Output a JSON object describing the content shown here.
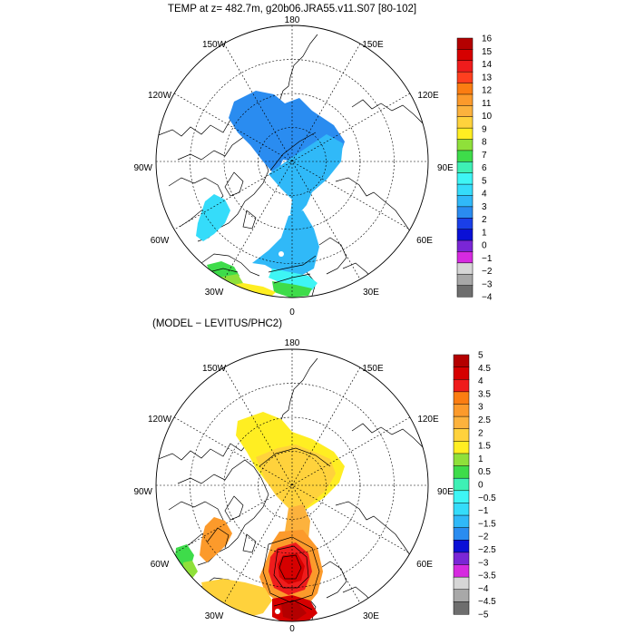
{
  "top": {
    "title": "TEMP at z= 482.7m, g20b06.JRA55.v11.S07 [80-102]",
    "lon_labels": [
      "180",
      "150W",
      "150E",
      "120W",
      "120E",
      "90W",
      "90E",
      "60W",
      "60E",
      "30W",
      "30E",
      "0"
    ],
    "colorbar": {
      "labels": [
        "16",
        "15",
        "14",
        "13",
        "12",
        "11",
        "10",
        "9",
        "8",
        "7",
        "6",
        "5",
        "4",
        "3",
        "2",
        "1",
        "0",
        "−1",
        "−2",
        "−3",
        "−4"
      ],
      "colors": [
        "#b40000",
        "#d60000",
        "#ef1c1c",
        "#ff3f1f",
        "#fb7d12",
        "#fc9a2b",
        "#fcb23d",
        "#ffd23c",
        "#ffee22",
        "#8fe03a",
        "#3edc4a",
        "#3ef0b5",
        "#3ef5f5",
        "#35dcfa",
        "#30b9f8",
        "#2a8cf0",
        "#1a3fe8",
        "#0a10d6",
        "#7a26d6",
        "#d62ae0",
        "#d6d6d6",
        "#a8a8a8",
        "#6e6e6e"
      ]
    }
  },
  "bottom": {
    "title": "(MODEL − LEVITUS/PHC2)",
    "lon_labels": [
      "180",
      "150W",
      "150E",
      "120W",
      "120E",
      "90W",
      "90E",
      "60W",
      "60E",
      "30W",
      "30E",
      "0"
    ],
    "colorbar": {
      "labels": [
        "5",
        "4.5",
        "4",
        "3.5",
        "3",
        "2.5",
        "2",
        "1.5",
        "1",
        "0.5",
        "0",
        "−0.5",
        "−1",
        "−1.5",
        "−2",
        "−2.5",
        "−3",
        "−3.5",
        "−4",
        "−4.5",
        "−5"
      ],
      "colors": [
        "#b40000",
        "#d60000",
        "#ef1c1c",
        "#fb7d12",
        "#fc9a2b",
        "#fcb23d",
        "#ffd23c",
        "#ffee22",
        "#8fe03a",
        "#3edc4a",
        "#3ef0b5",
        "#3ef5f5",
        "#35dcfa",
        "#30b9f8",
        "#2a8cf0",
        "#0a10d6",
        "#7a26d6",
        "#d62ae0",
        "#d6d6d6",
        "#a8a8a8",
        "#6e6e6e"
      ]
    }
  }
}
